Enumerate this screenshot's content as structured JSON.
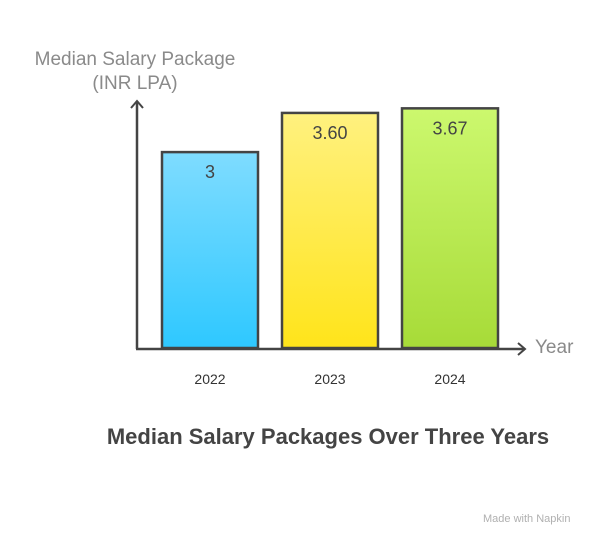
{
  "chart_data": {
    "type": "bar",
    "title": "Median Salary Packages Over Three Years",
    "ylabel": "Median Salary Package (INR LPA)",
    "xlabel": "Year",
    "categories": [
      "2022",
      "2023",
      "2024"
    ],
    "values": [
      3,
      3.6,
      3.67
    ],
    "data_labels": [
      "3",
      "3.60",
      "3.67"
    ],
    "colors": [
      [
        "#7fdcff",
        "#2ec8ff"
      ],
      [
        "#fff17f",
        "#ffe41a"
      ],
      [
        "#ccf86e",
        "#a7db38"
      ]
    ],
    "ylim": [
      0,
      3.8
    ],
    "grid": false,
    "legend": "none"
  },
  "watermark": "Made with Napkin"
}
